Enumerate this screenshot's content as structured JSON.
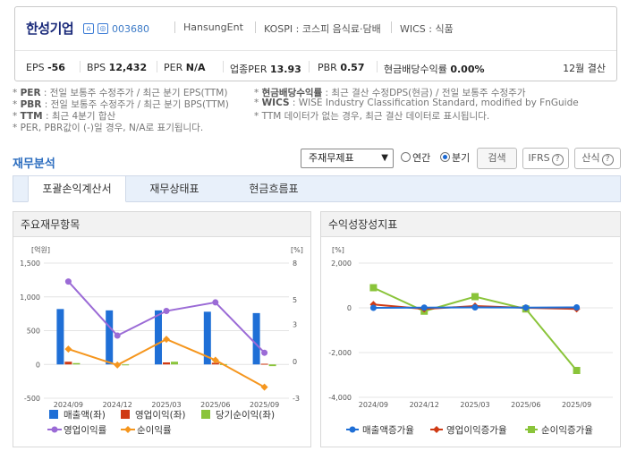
{
  "company": {
    "name": "한성기업",
    "code": "003680",
    "eng": "HansungEnt",
    "market": "KOSPI : 코스피 음식료·담배",
    "wics": "WICS : 식품"
  },
  "metrics": {
    "eps_label": "EPS",
    "eps": "-56",
    "bps_label": "BPS",
    "bps": "12,432",
    "per_label": "PER",
    "per": "N/A",
    "iper_label": "업종PER",
    "iper": "13.93",
    "pbr_label": "PBR",
    "pbr": "0.57",
    "div_label": "현금배당수익률",
    "div": "0.00%",
    "settlement": "12월 결산"
  },
  "notes": {
    "per_k": "PER",
    "per_t": " : 전일 보통주 수정주가 / 최근 분기 EPS(TTM)",
    "pbr_k": "PBR",
    "pbr_t": " : 전일 보통주 수정주가 / 최근 분기 BPS(TTM)",
    "ttm_k": "TTM",
    "ttm_t": " : 최근 4분기 합산",
    "neg": "* PER, PBR값이 (-)일 경우, N/A로 표기됩니다.",
    "div_k": "현금배당수익률",
    "div_t": " : 최근 결산 수정DPS(현금) / 전일 보통주 수정주가",
    "wics_k": "WICS",
    "wics_t": " : WISE Industry Classification Standard, modified by FnGuide",
    "ttm2": "* TTM 데이터가 없는 경우, 최근 결산 데이터로 표시됩니다."
  },
  "section_title": "재무분석",
  "controls": {
    "select": "주재무제표",
    "annual": "연간",
    "quarter": "분기",
    "search": "검색",
    "ifrs": "IFRS",
    "formula": "산식"
  },
  "tabs": [
    "포괄손익계산서",
    "재무상태표",
    "현금흐름표"
  ],
  "colors": {
    "sales": "#1f6fd6",
    "op": "#cf3a14",
    "net": "#8ac43a",
    "opm": "#9b6bd6",
    "npm": "#f5961e",
    "g_sales": "#1f6fd6",
    "g_op": "#cf3a14",
    "g_net": "#8ac43a"
  },
  "chart_data": [
    {
      "title": "주요재무항목",
      "type": "bar",
      "categories": [
        "2024/09",
        "2024/12",
        "2025/03",
        "2025/06",
        "2025/09"
      ],
      "left_unit": "[억원]",
      "right_unit": "[%]",
      "left_ticks": [
        "1,500",
        "1,000",
        "500",
        "0",
        "-500"
      ],
      "right_ticks": [
        "8",
        "5",
        "3",
        "0",
        "-3"
      ],
      "ylim_left": [
        -500,
        1500
      ],
      "ylim_right": [
        -3,
        8
      ],
      "series": [
        {
          "name": "매출액(좌)",
          "axis": "left",
          "kind": "bar",
          "values": [
            820,
            800,
            800,
            780,
            760
          ]
        },
        {
          "name": "영업이익(좌)",
          "axis": "left",
          "kind": "bar",
          "values": [
            40,
            15,
            30,
            25,
            10
          ]
        },
        {
          "name": "당기순이익(좌)",
          "axis": "left",
          "kind": "bar",
          "values": [
            20,
            -10,
            40,
            5,
            -25
          ]
        },
        {
          "name": "영업이익률",
          "axis": "right",
          "kind": "line",
          "values": [
            6.5,
            2.1,
            4.1,
            4.8,
            0.7
          ]
        },
        {
          "name": "순이익률",
          "axis": "right",
          "kind": "line",
          "values": [
            1.0,
            -0.3,
            1.8,
            0.1,
            -2.1
          ]
        }
      ]
    },
    {
      "title": "수익성장성지표",
      "type": "line",
      "categories": [
        "2024/09",
        "2024/12",
        "2025/03",
        "2025/06",
        "2025/09"
      ],
      "left_unit": "[%]",
      "left_ticks": [
        "2,000",
        "0",
        "-2,000",
        "-4,000"
      ],
      "ylim_left": [
        -4000,
        2000
      ],
      "series": [
        {
          "name": "매출액증가율",
          "values": [
            0,
            10,
            20,
            10,
            20
          ]
        },
        {
          "name": "영업이익증가율",
          "values": [
            150,
            -50,
            80,
            0,
            -50
          ]
        },
        {
          "name": "순이익증가율",
          "values": [
            900,
            -150,
            500,
            -50,
            -2800
          ]
        }
      ]
    }
  ]
}
